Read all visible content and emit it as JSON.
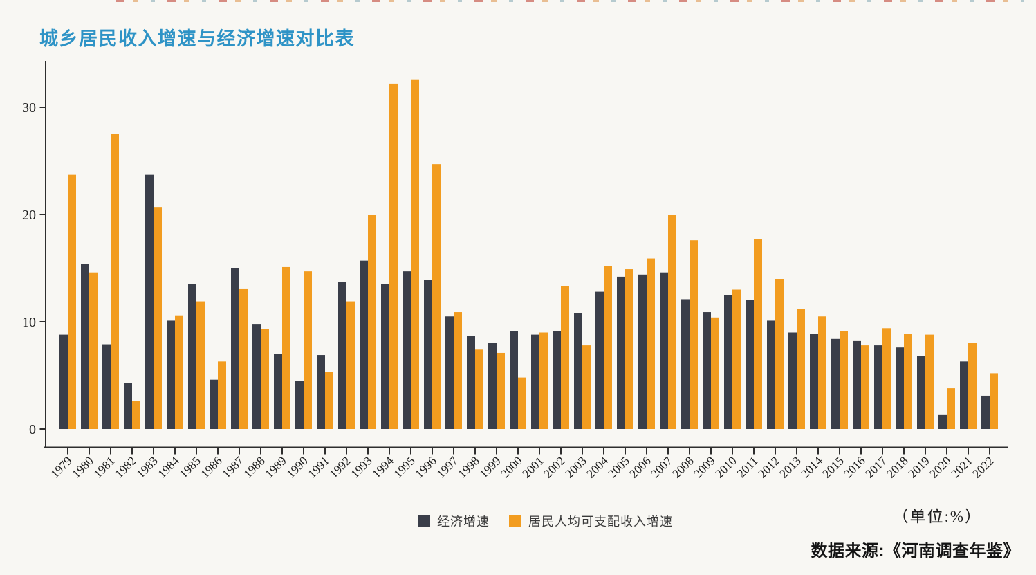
{
  "title": {
    "text": "城乡居民收入增速与经济增速对比表"
  },
  "colors": {
    "background": "#f8f7f3",
    "title": "#2e93c6",
    "axis": "#2e2e2e",
    "tick_text": "#1d1d1d",
    "bar_economic": "#3a3e49",
    "bar_income": "#f29c1f"
  },
  "legend": {
    "items": [
      {
        "label": "经济增速",
        "color": "#3a3e49"
      },
      {
        "label": "居民人均可支配收入增速",
        "color": "#f29c1f"
      }
    ]
  },
  "footer": {
    "unit_label": "（单位:%）",
    "source_label": "数据来源:《河南调查年鉴》"
  },
  "chart_data": {
    "type": "bar",
    "title": "城乡居民收入增速与经济增速对比表",
    "xlabel": "",
    "ylabel": "",
    "unit": "%",
    "grid": false,
    "legend_position": "bottom",
    "ylim": [
      0,
      34
    ],
    "yticks": [
      0,
      10,
      20,
      30
    ],
    "categories": [
      "1979",
      "1980",
      "1981",
      "1982",
      "1983",
      "1984",
      "1985",
      "1986",
      "1987",
      "1988",
      "1989",
      "1990",
      "1991",
      "1992",
      "1993",
      "1994",
      "1995",
      "1996",
      "1997",
      "1998",
      "1999",
      "2000",
      "2001",
      "2002",
      "2003",
      "2004",
      "2005",
      "2006",
      "2007",
      "2008",
      "2009",
      "2010",
      "2011",
      "2012",
      "2013",
      "2014",
      "2015",
      "2016",
      "2017",
      "2018",
      "2019",
      "2020",
      "2021",
      "2022"
    ],
    "series": [
      {
        "name": "经济增速",
        "color": "#3a3e49",
        "values": [
          8.8,
          15.4,
          7.9,
          4.3,
          23.7,
          10.1,
          13.5,
          4.6,
          15.0,
          9.8,
          7.0,
          4.5,
          6.9,
          13.7,
          15.7,
          13.5,
          14.7,
          13.9,
          10.5,
          8.7,
          8.0,
          9.1,
          8.8,
          9.1,
          10.8,
          12.8,
          14.2,
          14.4,
          14.6,
          12.1,
          10.9,
          12.5,
          12.0,
          10.1,
          9.0,
          8.9,
          8.4,
          8.2,
          7.8,
          7.6,
          6.8,
          1.3,
          6.3,
          3.1
        ]
      },
      {
        "name": "居民人均可支配收入增速",
        "color": "#f29c1f",
        "values": [
          23.7,
          14.6,
          27.5,
          2.6,
          20.7,
          10.6,
          11.9,
          6.3,
          13.1,
          9.3,
          15.1,
          14.7,
          5.3,
          11.9,
          20.0,
          32.2,
          32.6,
          24.7,
          10.9,
          7.4,
          7.1,
          4.8,
          9.0,
          13.3,
          7.8,
          15.2,
          14.9,
          15.9,
          20.0,
          17.6,
          10.4,
          13.0,
          17.7,
          14.0,
          11.2,
          10.5,
          9.1,
          7.8,
          9.4,
          8.9,
          8.8,
          3.8,
          8.0,
          5.2
        ]
      }
    ]
  }
}
